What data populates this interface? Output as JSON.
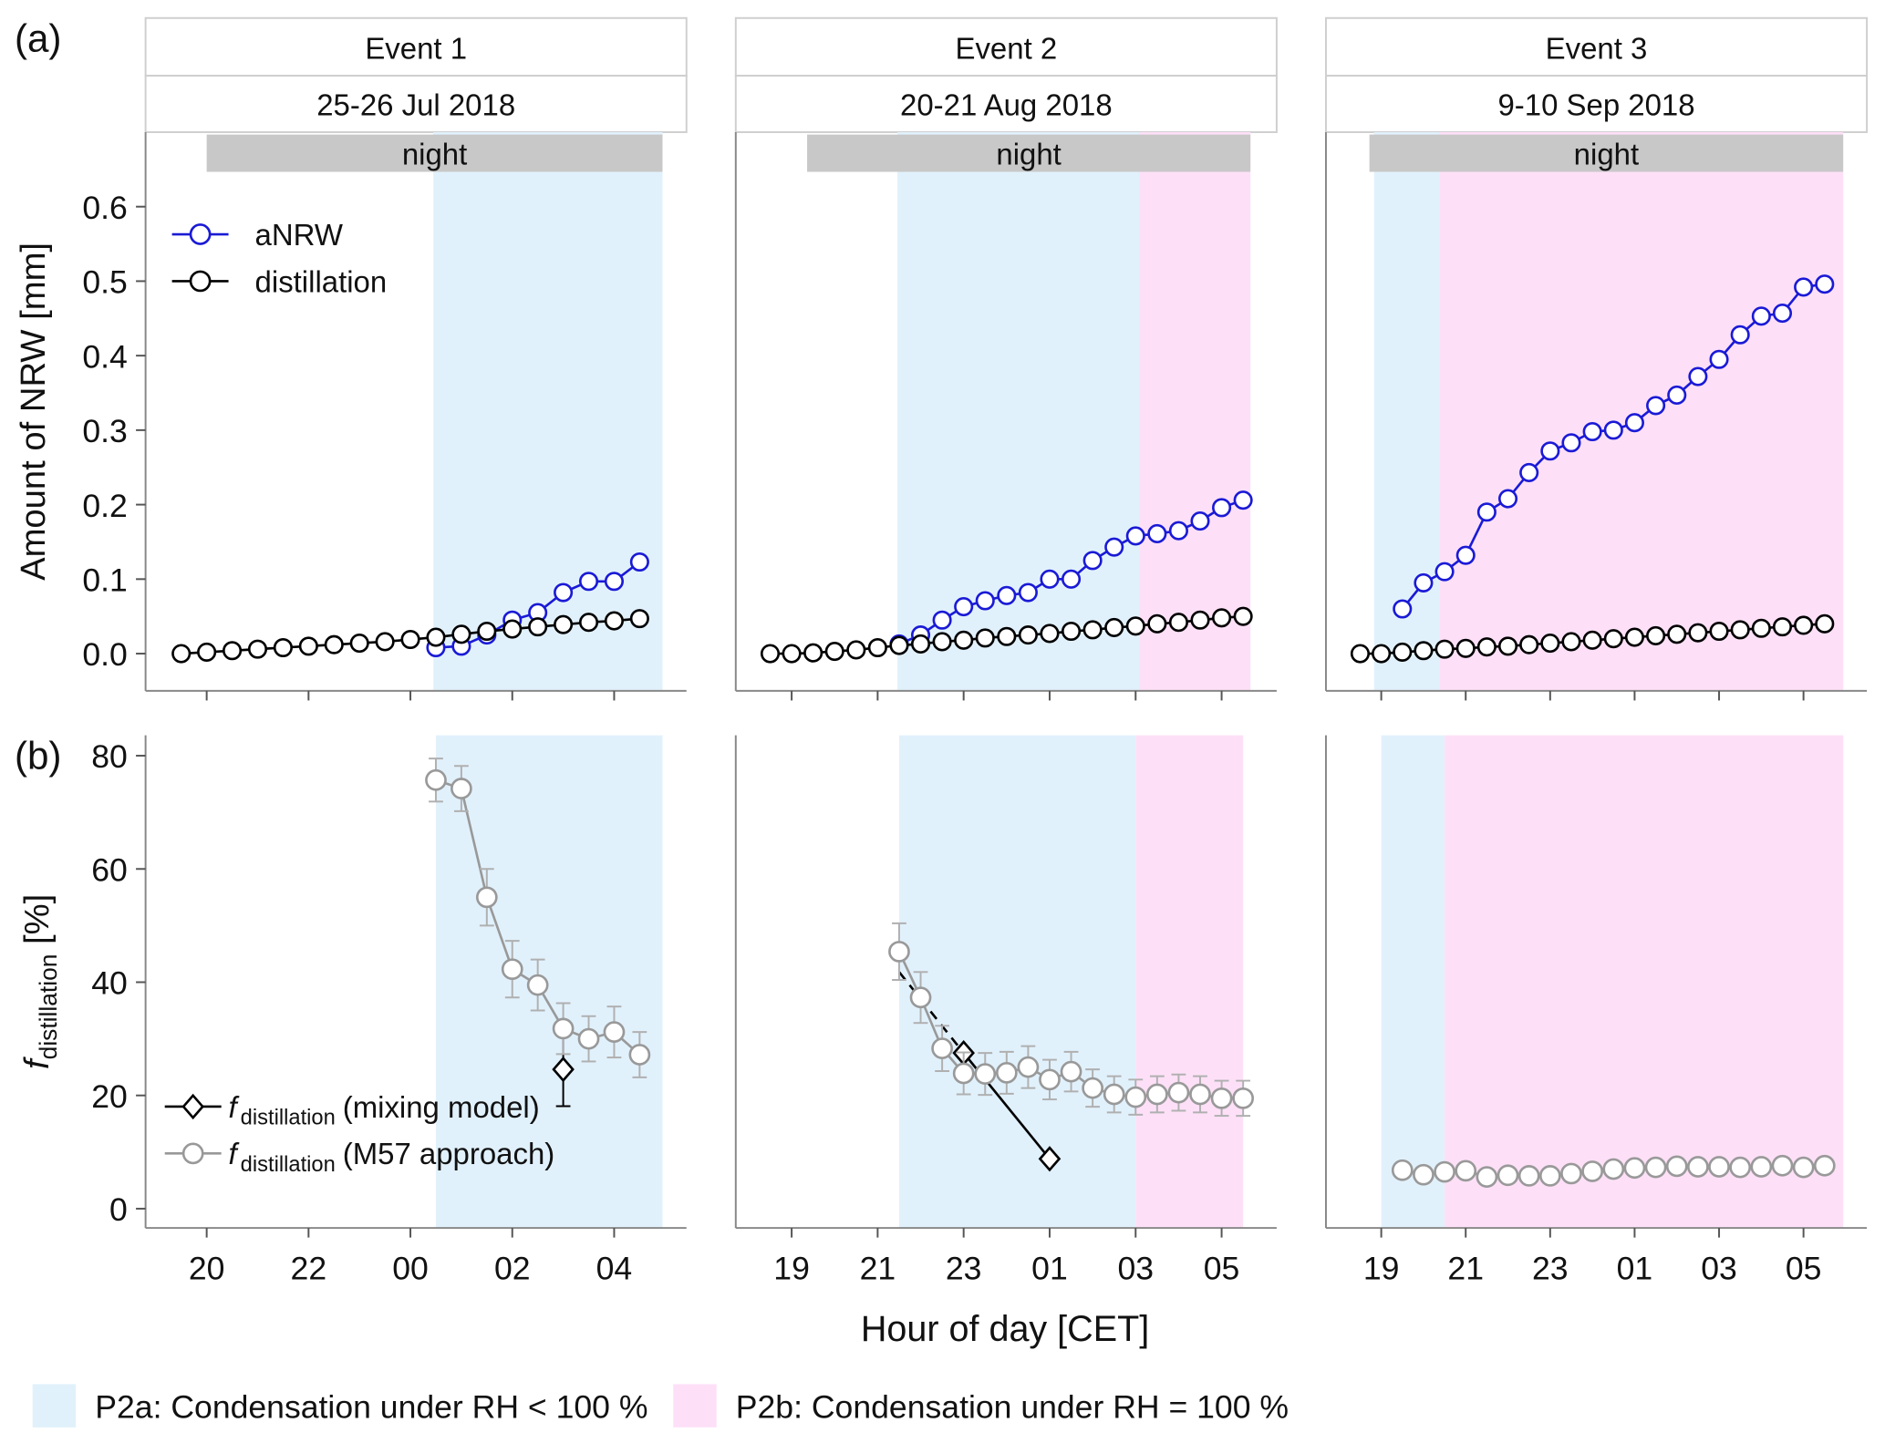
{
  "figure": {
    "panel_labels": [
      "(a)",
      "(b)"
    ],
    "xlabel": "Hour of day [CET]",
    "shading_legend": [
      {
        "label": "P2a: Condensation under RH < 100 %",
        "color": "#e1f1fc"
      },
      {
        "label": "P2b: Condensation under RH = 100 %",
        "color": "#fde0f7"
      }
    ]
  },
  "chart_data": [
    {
      "type": "line",
      "event": "Event 1",
      "date": "25-26 Jul 2018",
      "night_label": "night",
      "night": [
        20,
        28.95
      ],
      "shading": [
        {
          "range": [
            24.45,
            28.95
          ],
          "color": "#e1f1fc"
        }
      ],
      "xlim": [
        18.8,
        29.42
      ],
      "xticks": [
        20,
        22,
        24,
        26,
        28
      ],
      "xtick_labels": false,
      "ylim": [
        -0.05,
        0.7
      ],
      "yticks": [
        {
          "value": 0,
          "label": "0.0"
        },
        0.1,
        0.2,
        0.3,
        0.4,
        0.5,
        0.6
      ],
      "ylabel": "Amount of NRW [mm]",
      "legend": "upper left",
      "series": [
        {
          "name": "aNRW",
          "color": "#1a1ad6",
          "x": [
            24.5,
            25,
            25.5,
            26,
            26.5,
            27,
            27.5,
            28,
            28.5
          ],
          "values": [
            0.008,
            0.01,
            0.025,
            0.045,
            0.055,
            0.082,
            0.097,
            0.097,
            0.123
          ]
        },
        {
          "name": "distillation",
          "color": "#000000",
          "x": [
            19.5,
            20,
            20.5,
            21,
            21.5,
            22,
            22.5,
            23,
            23.5,
            24,
            24.5,
            25,
            25.5,
            26,
            26.5,
            27,
            27.5,
            28,
            28.5
          ],
          "values": [
            0,
            0.002,
            0.004,
            0.006,
            0.008,
            0.01,
            0.012,
            0.014,
            0.016,
            0.019,
            0.022,
            0.026,
            0.03,
            0.033,
            0.036,
            0.039,
            0.042,
            0.044,
            0.047
          ]
        }
      ]
    },
    {
      "type": "line",
      "event": "Event 2",
      "date": "20-21 Aug 2018",
      "night_label": "night",
      "night": [
        19.36,
        29.67
      ],
      "shading": [
        {
          "range": [
            21.46,
            27.08
          ],
          "color": "#e1f1fc"
        },
        {
          "range": [
            27.08,
            29.67
          ],
          "color": "#fde0f7"
        }
      ],
      "xlim": [
        17.7,
        30.28
      ],
      "xticks": [
        19,
        21,
        23,
        25,
        27,
        29
      ],
      "xtick_labels": false,
      "ylim": [
        -0.05,
        0.7
      ],
      "series": [
        {
          "color": "#1a1ad6",
          "x": [
            21.5,
            22,
            22.5,
            23,
            23.5,
            24,
            24.5,
            25,
            25.5,
            26,
            26.5,
            27,
            27.5,
            28,
            28.5,
            29,
            29.5
          ],
          "values": [
            0.013,
            0.025,
            0.045,
            0.063,
            0.071,
            0.078,
            0.082,
            0.1,
            0.1,
            0.125,
            0.143,
            0.158,
            0.161,
            0.165,
            0.178,
            0.196,
            0.206
          ]
        },
        {
          "color": "#000000",
          "x": [
            18.5,
            19,
            19.5,
            20,
            20.5,
            21,
            21.5,
            22,
            22.5,
            23,
            23.5,
            24,
            24.5,
            25,
            25.5,
            26,
            26.5,
            27,
            27.5,
            28,
            28.5,
            29,
            29.5
          ],
          "values": [
            0,
            0,
            0.001,
            0.003,
            0.005,
            0.008,
            0.011,
            0.013,
            0.016,
            0.018,
            0.021,
            0.023,
            0.025,
            0.027,
            0.03,
            0.032,
            0.035,
            0.037,
            0.04,
            0.042,
            0.045,
            0.048,
            0.05
          ]
        }
      ]
    },
    {
      "type": "line",
      "event": "Event 3",
      "date": "9-10 Sep 2018",
      "night_label": "night",
      "night": [
        18.72,
        29.94
      ],
      "shading": [
        {
          "range": [
            18.83,
            20.37
          ],
          "color": "#e1f1fc"
        },
        {
          "range": [
            20.37,
            29.94
          ],
          "color": "#fde0f7"
        }
      ],
      "xlim": [
        17.69,
        30.5
      ],
      "xticks": [
        19,
        21,
        23,
        25,
        27,
        29
      ],
      "xtick_labels": false,
      "ylim": [
        -0.05,
        0.7
      ],
      "series": [
        {
          "color": "#1a1ad6",
          "x": [
            19.5,
            20,
            20.5,
            21,
            21.5,
            22,
            22.5,
            23,
            23.5,
            24,
            24.5,
            25,
            25.5,
            26,
            26.5,
            27,
            27.5,
            28,
            28.5,
            29,
            29.5
          ],
          "values": [
            0.06,
            0.095,
            0.11,
            0.132,
            0.19,
            0.208,
            0.243,
            0.272,
            0.283,
            0.298,
            0.3,
            0.31,
            0.333,
            0.347,
            0.372,
            0.395,
            0.428,
            0.453,
            0.457,
            0.492,
            0.496
          ]
        },
        {
          "color": "#000000",
          "x": [
            18.5,
            19,
            19.5,
            20,
            20.5,
            21,
            21.5,
            22,
            22.5,
            23,
            23.5,
            24,
            24.5,
            25,
            25.5,
            26,
            26.5,
            27,
            27.5,
            28,
            28.5,
            29,
            29.5
          ],
          "values": [
            0,
            0,
            0.002,
            0.004,
            0.006,
            0.007,
            0.009,
            0.01,
            0.012,
            0.014,
            0.016,
            0.018,
            0.02,
            0.022,
            0.024,
            0.026,
            0.028,
            0.03,
            0.032,
            0.034,
            0.036,
            0.038,
            0.04
          ]
        }
      ]
    },
    {
      "type": "line",
      "shading": [
        {
          "range": [
            24.5,
            28.95
          ],
          "color": "#e1f1fc"
        }
      ],
      "xlim": [
        18.8,
        29.42
      ],
      "xticks": [
        20,
        22,
        {
          "value": 24,
          "label": "00"
        },
        {
          "value": 26,
          "label": "02"
        },
        {
          "value": 28,
          "label": "04"
        }
      ],
      "xtick_labels": true,
      "ylim": [
        -3.4,
        83.6
      ],
      "yticks": [
        0,
        20,
        40,
        60,
        80
      ],
      "ylabel": {
        "symbol": "f",
        "subscript": "distillation",
        "unit": " [%]"
      },
      "legend": "lower left",
      "legend_symbol": "f",
      "legend_subscript": "distillation",
      "series": [
        {
          "name": "(mixing model)",
          "color": "#000000",
          "marker": "diamond",
          "x": [
            27
          ],
          "values": [
            24.6
          ],
          "errors": [
            6.5
          ]
        },
        {
          "name": "(M57 approach)",
          "color": "#999999",
          "x": [
            24.5,
            25,
            25.5,
            26,
            26.5,
            27,
            27.5,
            28,
            28.5
          ],
          "values": [
            75.7,
            74.2,
            55,
            42.3,
            39.5,
            31.8,
            30,
            31.2,
            27.2
          ],
          "errors": [
            3.8,
            4,
            5,
            5,
            4.5,
            4.5,
            4,
            4.5,
            4
          ]
        }
      ]
    },
    {
      "type": "line",
      "shading": [
        {
          "range": [
            21.5,
            27
          ],
          "color": "#e1f1fc"
        },
        {
          "range": [
            27,
            29.5
          ],
          "color": "#fde0f7"
        }
      ],
      "xlim": [
        17.7,
        30.28
      ],
      "xticks": [
        19,
        21,
        23,
        {
          "value": 25,
          "label": "01"
        },
        {
          "value": 27,
          "label": "03"
        },
        {
          "value": 29,
          "label": "05"
        }
      ],
      "xtick_labels": true,
      "ylim": [
        -3.4,
        83.6
      ],
      "series": [
        {
          "color": "#000000",
          "dash": true,
          "marker": "none",
          "x": [
            21.5,
            23
          ],
          "values": [
            41.8,
            27.5
          ]
        },
        {
          "color": "#000000",
          "marker": "diamond",
          "x": [
            23,
            25
          ],
          "values": [
            27.5,
            8.8
          ]
        },
        {
          "color": "#999999",
          "x": [
            21.5,
            22,
            22.5,
            23,
            23.5,
            24,
            24.5,
            25,
            25.5,
            26,
            26.5,
            27,
            27.5,
            28,
            28.5,
            29,
            29.5
          ],
          "values": [
            45.4,
            37.3,
            28.3,
            23.9,
            23.8,
            24,
            25,
            22.8,
            24.2,
            21.3,
            20.2,
            19.7,
            20.2,
            20.5,
            20.2,
            19.5,
            19.5
          ],
          "errors": [
            5,
            4.5,
            4,
            3.7,
            3.7,
            3.7,
            3.7,
            3.5,
            3.5,
            3.3,
            3.2,
            3.1,
            3.2,
            3.2,
            3.2,
            3.1,
            3.1
          ]
        }
      ]
    },
    {
      "type": "line",
      "shading": [
        {
          "range": [
            19,
            20.5
          ],
          "color": "#e1f1fc"
        },
        {
          "range": [
            20.5,
            29.94
          ],
          "color": "#fde0f7"
        }
      ],
      "xlim": [
        17.69,
        30.5
      ],
      "xticks": [
        19,
        21,
        23,
        {
          "value": 25,
          "label": "01"
        },
        {
          "value": 27,
          "label": "03"
        },
        {
          "value": 29,
          "label": "05"
        }
      ],
      "xtick_labels": true,
      "ylim": [
        -3.4,
        83.6
      ],
      "series": [
        {
          "color": "#999999",
          "x": [
            19.5,
            20,
            20.5,
            21,
            21.5,
            22,
            22.5,
            23,
            23.5,
            24,
            24.5,
            25,
            25.5,
            26,
            26.5,
            27,
            27.5,
            28,
            28.5,
            29,
            29.5
          ],
          "values": [
            6.8,
            6,
            6.5,
            6.7,
            5.6,
            5.9,
            5.8,
            5.8,
            6.2,
            6.6,
            7,
            7.2,
            7.3,
            7.5,
            7.4,
            7.4,
            7.3,
            7.4,
            7.6,
            7.3,
            7.6
          ],
          "errors": [
            1,
            1,
            1,
            1,
            1,
            1,
            1,
            1,
            1,
            1,
            1,
            1,
            1,
            1,
            1,
            1,
            1,
            1,
            1,
            1,
            1
          ]
        }
      ]
    }
  ]
}
